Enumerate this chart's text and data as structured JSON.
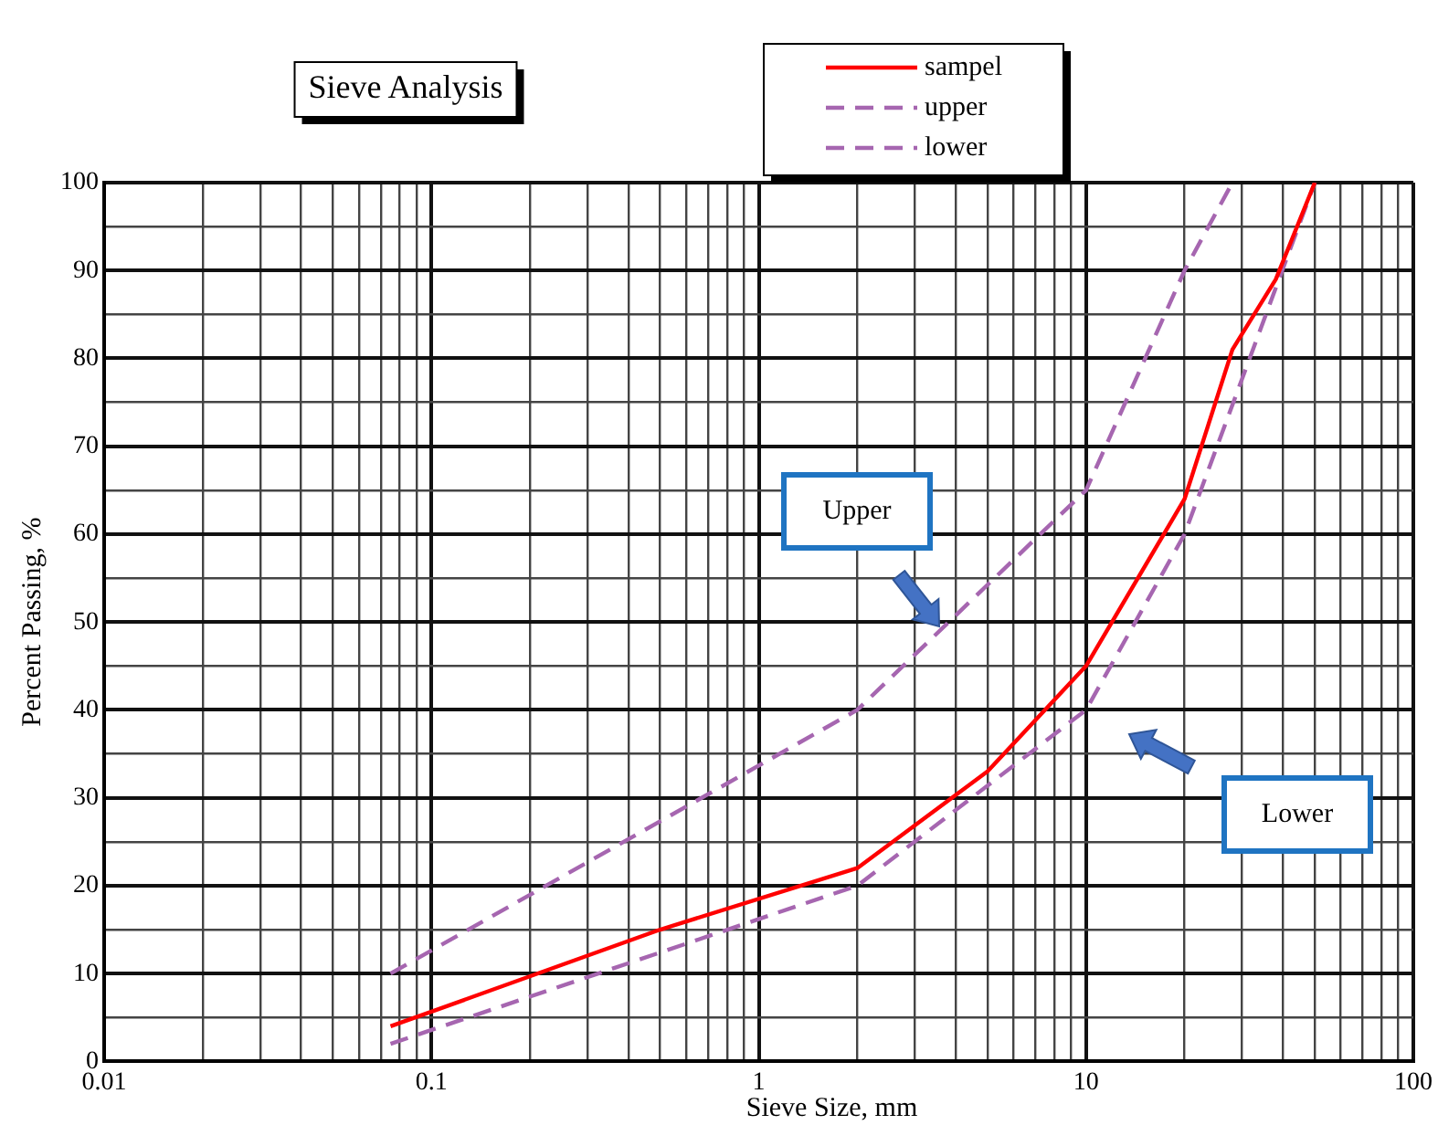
{
  "chart_data": {
    "type": "line",
    "title": "Sieve Analysis",
    "xlabel": "Sieve Size, mm",
    "ylabel": "Percent Passing, %",
    "log": "x",
    "xlim": [
      0.01,
      100
    ],
    "ylim": [
      0,
      100
    ],
    "grid": true,
    "legend": "top",
    "marker": "none",
    "xticks": [
      0.01,
      {
        "value": 0.02,
        "label": null
      },
      {
        "value": 0.03,
        "label": null
      },
      {
        "value": 0.04,
        "label": null
      },
      {
        "value": 0.05,
        "label": null
      },
      {
        "value": 0.06,
        "label": null
      },
      {
        "value": 0.07,
        "label": null
      },
      {
        "value": 0.08,
        "label": null
      },
      {
        "value": 0.09,
        "label": null
      },
      0.1,
      {
        "value": 0.2,
        "label": null
      },
      {
        "value": 0.3,
        "label": null
      },
      {
        "value": 0.4,
        "label": null
      },
      {
        "value": 0.5,
        "label": null
      },
      {
        "value": 0.6,
        "label": null
      },
      {
        "value": 0.7,
        "label": null
      },
      {
        "value": 0.8,
        "label": null
      },
      {
        "value": 0.9,
        "label": null
      },
      1,
      {
        "value": 2,
        "label": null
      },
      {
        "value": 3,
        "label": null
      },
      {
        "value": 4,
        "label": null
      },
      {
        "value": 5,
        "label": null
      },
      {
        "value": 6,
        "label": null
      },
      {
        "value": 7,
        "label": null
      },
      {
        "value": 8,
        "label": null
      },
      {
        "value": 9,
        "label": null
      },
      10,
      {
        "value": 20,
        "label": null
      },
      {
        "value": 30,
        "label": null
      },
      {
        "value": 40,
        "label": null
      },
      {
        "value": 50,
        "label": null
      },
      {
        "value": 60,
        "label": null
      },
      {
        "value": 70,
        "label": null
      },
      {
        "value": 80,
        "label": null
      },
      {
        "value": 90,
        "label": null
      },
      100
    ],
    "yticks": [
      0,
      {
        "value": 5,
        "label": null
      },
      10,
      {
        "value": 15,
        "label": null
      },
      20,
      {
        "value": 25,
        "label": null
      },
      30,
      {
        "value": 35,
        "label": null
      },
      40,
      {
        "value": 45,
        "label": null
      },
      50,
      {
        "value": 55,
        "label": null
      },
      60,
      {
        "value": 65,
        "label": null
      },
      70,
      {
        "value": 75,
        "label": null
      },
      80,
      {
        "value": 85,
        "label": null
      },
      90,
      {
        "value": 95,
        "label": null
      },
      100
    ],
    "series": [
      {
        "name": "sampel",
        "color": "#ff0000",
        "line_style": "solid",
        "x": [
          0.075,
          0.5,
          2,
          5,
          10,
          20,
          28,
          38,
          50
        ],
        "values": [
          4,
          15,
          22,
          33,
          45,
          64,
          81,
          89,
          100
        ]
      },
      {
        "name": "upper",
        "color": "#a666b0",
        "line_style": "dashed",
        "x": [
          0.075,
          2,
          10,
          20,
          28
        ],
        "values": [
          10,
          40,
          65,
          90,
          100
        ]
      },
      {
        "name": "lower",
        "color": "#a666b0",
        "line_style": "dashed",
        "x": [
          0.075,
          2,
          10,
          20,
          50
        ],
        "values": [
          2,
          20,
          40,
          60,
          100
        ]
      }
    ],
    "annotations": [
      "Upper",
      "Lower"
    ]
  }
}
